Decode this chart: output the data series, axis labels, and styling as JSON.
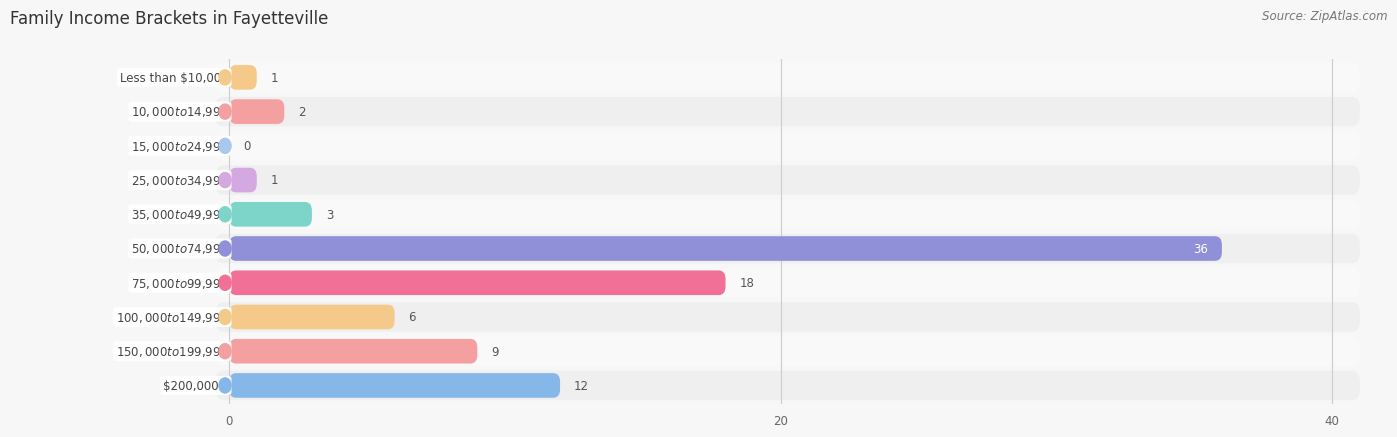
{
  "title": "Family Income Brackets in Fayetteville",
  "source": "Source: ZipAtlas.com",
  "categories": [
    "Less than $10,000",
    "$10,000 to $14,999",
    "$15,000 to $24,999",
    "$25,000 to $34,999",
    "$35,000 to $49,999",
    "$50,000 to $74,999",
    "$75,000 to $99,999",
    "$100,000 to $149,999",
    "$150,000 to $199,999",
    "$200,000+"
  ],
  "values": [
    1,
    2,
    0,
    1,
    3,
    36,
    18,
    6,
    9,
    12
  ],
  "bar_colors": [
    "#f5c98a",
    "#f4a0a0",
    "#a8c8f0",
    "#d4a8e0",
    "#7dd4c8",
    "#9090d8",
    "#f07098",
    "#f5c98a",
    "#f4a0a0",
    "#85b8e8"
  ],
  "background_color": "#f7f7f7",
  "xlim": [
    0,
    40
  ],
  "xticks": [
    0,
    20,
    40
  ],
  "title_fontsize": 12,
  "label_fontsize": 8.5,
  "value_fontsize": 8.5,
  "source_fontsize": 8.5
}
